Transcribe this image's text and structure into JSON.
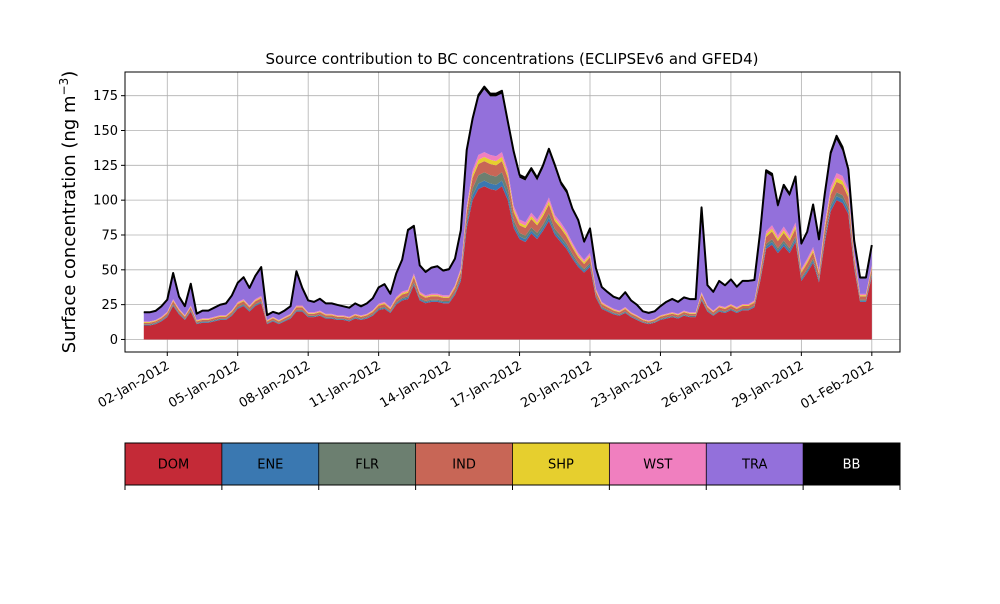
{
  "chart_data": {
    "type": "area",
    "title": "Source contribution to BC concentrations (ECLIPSEv6 and GFED4)",
    "ylabel_text": "Surface concentration (ng m",
    "ylabel_exp": "−3",
    "ylabel_close": ")",
    "xlabel": "",
    "ylim": [
      -9,
      192
    ],
    "yticks": [
      0,
      25,
      50,
      75,
      100,
      125,
      150,
      175
    ],
    "xlim": [
      -0.8,
      32.2
    ],
    "xticks": [
      {
        "day": 1,
        "label": "02-Jan-2012"
      },
      {
        "day": 4,
        "label": "05-Jan-2012"
      },
      {
        "day": 7,
        "label": "08-Jan-2012"
      },
      {
        "day": 10,
        "label": "11-Jan-2012"
      },
      {
        "day": 13,
        "label": "14-Jan-2012"
      },
      {
        "day": 16,
        "label": "17-Jan-2012"
      },
      {
        "day": 19,
        "label": "20-Jan-2012"
      },
      {
        "day": 22,
        "label": "23-Jan-2012"
      },
      {
        "day": 25,
        "label": "26-Jan-2012"
      },
      {
        "day": 28,
        "label": "29-Jan-2012"
      },
      {
        "day": 31,
        "label": "01-Feb-2012"
      }
    ],
    "grid": true,
    "legend_position": "bottom",
    "x_unit": "days since 01-Jan-2012",
    "x": [
      0.0,
      0.25,
      0.5,
      0.75,
      1.0,
      1.25,
      1.5,
      1.75,
      2.0,
      2.25,
      2.5,
      2.75,
      3.0,
      3.25,
      3.5,
      3.75,
      4.0,
      4.25,
      4.5,
      4.75,
      5.0,
      5.25,
      5.5,
      5.75,
      6.0,
      6.25,
      6.5,
      6.75,
      7.0,
      7.25,
      7.5,
      7.75,
      8.0,
      8.25,
      8.5,
      8.75,
      9.0,
      9.25,
      9.5,
      9.75,
      10.0,
      10.25,
      10.5,
      10.75,
      11.0,
      11.25,
      11.5,
      11.75,
      12.0,
      12.25,
      12.5,
      12.75,
      13.0,
      13.25,
      13.5,
      13.75,
      14.0,
      14.25,
      14.5,
      14.75,
      15.0,
      15.25,
      15.5,
      15.75,
      16.0,
      16.25,
      16.5,
      16.75,
      17.0,
      17.25,
      17.5,
      17.75,
      18.0,
      18.25,
      18.5,
      18.75,
      19.0,
      19.25,
      19.5,
      19.75,
      20.0,
      20.25,
      20.5,
      20.75,
      21.0,
      21.25,
      21.5,
      21.75,
      22.0,
      22.25,
      22.5,
      22.75,
      23.0,
      23.25,
      23.5,
      23.75,
      24.0,
      24.25,
      24.5,
      24.75,
      25.0,
      25.25,
      25.5,
      25.75,
      26.0,
      26.25,
      26.5,
      26.75,
      27.0,
      27.25,
      27.5,
      27.75,
      28.0,
      28.25,
      28.5,
      28.75,
      29.0,
      29.25,
      29.5,
      29.75,
      30.0,
      30.25,
      30.5,
      30.75,
      31.0
    ],
    "series": [
      {
        "name": "DOM",
        "color": "#c42a37",
        "values": [
          10,
          10,
          11,
          13,
          16,
          24,
          18,
          14,
          20,
          11,
          12,
          12,
          13,
          14,
          14,
          17,
          22,
          24,
          20,
          24,
          26,
          11,
          13,
          11,
          13,
          15,
          20,
          20,
          16,
          16,
          17,
          15,
          15,
          14,
          14,
          13,
          15,
          14,
          15,
          17,
          21,
          22,
          19,
          25,
          28,
          29,
          39,
          28,
          26,
          27,
          27,
          26,
          26,
          32,
          42,
          80,
          100,
          108,
          110,
          108,
          107,
          110,
          100,
          80,
          72,
          70,
          76,
          72,
          78,
          85,
          75,
          70,
          65,
          58,
          52,
          48,
          52,
          30,
          22,
          20,
          18,
          17,
          19,
          16,
          14,
          12,
          11,
          12,
          14,
          15,
          16,
          15,
          17,
          16,
          16,
          28,
          20,
          17,
          20,
          19,
          21,
          19,
          21,
          21,
          23,
          42,
          65,
          68,
          62,
          67,
          62,
          70,
          42,
          48,
          55,
          41,
          70,
          92,
          100,
          98,
          90,
          51,
          27,
          27,
          45
        ]
      },
      {
        "name": "ENE",
        "color": "#3a78b1",
        "values": [
          0.5,
          0.5,
          0.5,
          0.5,
          0.6,
          0.7,
          0.6,
          0.5,
          0.6,
          0.5,
          0.5,
          0.5,
          0.5,
          0.5,
          0.5,
          0.6,
          0.7,
          0.7,
          0.6,
          0.7,
          0.7,
          0.5,
          0.5,
          0.5,
          0.5,
          0.5,
          0.6,
          0.6,
          0.5,
          0.5,
          0.5,
          0.5,
          0.5,
          0.5,
          0.5,
          0.5,
          0.5,
          0.5,
          0.5,
          0.6,
          0.7,
          0.7,
          0.6,
          0.8,
          0.9,
          1,
          1,
          0.9,
          0.8,
          0.8,
          0.8,
          0.8,
          0.8,
          1,
          1.5,
          2.5,
          3.5,
          4,
          4,
          4,
          4,
          4,
          3.5,
          2.5,
          2,
          2,
          2,
          2,
          2,
          2.5,
          2,
          2,
          2,
          1.5,
          1.5,
          1.2,
          1.5,
          0.9,
          0.7,
          0.6,
          0.6,
          0.5,
          0.6,
          0.5,
          0.5,
          0.4,
          0.4,
          0.4,
          0.5,
          0.5,
          0.5,
          0.5,
          0.5,
          0.5,
          0.5,
          0.8,
          0.6,
          0.5,
          0.6,
          0.6,
          0.6,
          0.6,
          0.6,
          0.6,
          0.7,
          1.2,
          1.8,
          2,
          1.8,
          2,
          1.8,
          2,
          1.2,
          1.4,
          1.6,
          1.2,
          2,
          2.5,
          2.8,
          2.8,
          2.5,
          1.5,
          0.8,
          0.8,
          1.2
        ]
      },
      {
        "name": "FLR",
        "color": "#6c7f70",
        "values": [
          0.5,
          0.5,
          0.5,
          0.5,
          0.6,
          0.7,
          0.6,
          0.5,
          0.6,
          0.5,
          0.5,
          0.5,
          0.5,
          0.5,
          0.5,
          0.6,
          0.7,
          0.7,
          0.6,
          0.7,
          0.7,
          0.5,
          0.5,
          0.5,
          0.5,
          0.5,
          0.6,
          0.6,
          0.5,
          0.5,
          0.5,
          0.5,
          0.5,
          0.5,
          0.5,
          0.5,
          0.5,
          0.5,
          0.5,
          0.6,
          0.7,
          0.7,
          0.6,
          0.8,
          0.9,
          1,
          1.2,
          0.9,
          0.8,
          0.8,
          0.8,
          0.8,
          0.8,
          1,
          1.5,
          3,
          5,
          6,
          6,
          6,
          6,
          6,
          5,
          3,
          2.5,
          2.5,
          2.5,
          2.5,
          2.5,
          3,
          2.5,
          2.5,
          2,
          2,
          1.5,
          1.5,
          1.5,
          1,
          0.7,
          0.6,
          0.6,
          0.5,
          0.6,
          0.5,
          0.5,
          0.4,
          0.4,
          0.4,
          0.5,
          0.5,
          0.5,
          0.5,
          0.5,
          0.5,
          0.5,
          0.8,
          0.6,
          0.5,
          0.6,
          0.6,
          0.6,
          0.6,
          0.6,
          0.6,
          0.7,
          1.2,
          1.8,
          2,
          1.8,
          2,
          1.8,
          2,
          1.2,
          1.4,
          1.6,
          1.2,
          2,
          2.5,
          2.8,
          2.8,
          2.5,
          1.5,
          0.8,
          0.8,
          1.2
        ]
      },
      {
        "name": "IND",
        "color": "#c86656",
        "values": [
          1,
          1,
          1,
          1.2,
          1.5,
          2,
          1.6,
          1.3,
          1.8,
          1,
          1.1,
          1.1,
          1.2,
          1.3,
          1.3,
          1.5,
          2,
          2,
          1.8,
          2,
          2.2,
          1,
          1.2,
          1,
          1.2,
          1.3,
          1.8,
          1.8,
          1.4,
          1.4,
          1.5,
          1.3,
          1.3,
          1.2,
          1.2,
          1.2,
          1.3,
          1.2,
          1.3,
          1.5,
          1.8,
          2,
          1.6,
          2.2,
          2.5,
          2.5,
          3.5,
          2.5,
          2.3,
          2.4,
          2.4,
          2.3,
          2.3,
          2.8,
          3.5,
          6,
          7.5,
          8,
          8,
          8,
          8,
          8,
          7.5,
          6,
          5.5,
          5.5,
          6,
          5.5,
          6,
          6.5,
          5.5,
          5.5,
          5,
          4.5,
          4,
          3.5,
          4,
          2.5,
          2,
          1.8,
          1.6,
          1.5,
          1.7,
          1.4,
          1.3,
          1.1,
          1,
          1.1,
          1.3,
          1.4,
          1.5,
          1.4,
          1.5,
          1.4,
          1.4,
          2.5,
          1.8,
          1.5,
          1.8,
          1.7,
          1.9,
          1.7,
          1.9,
          1.9,
          2,
          3.5,
          5,
          5.5,
          5,
          5.5,
          5,
          5.5,
          3.5,
          4,
          4.5,
          3.5,
          5.5,
          7,
          7.5,
          7.5,
          7,
          4,
          2.3,
          2.3,
          3.5
        ]
      },
      {
        "name": "SHP",
        "color": "#e6cf2e",
        "values": [
          0.5,
          0.5,
          0.5,
          0.5,
          0.6,
          0.7,
          0.6,
          0.5,
          0.6,
          0.5,
          0.5,
          0.5,
          0.5,
          0.5,
          0.5,
          0.6,
          0.7,
          0.7,
          0.6,
          0.7,
          0.7,
          0.5,
          0.5,
          0.5,
          0.5,
          0.5,
          0.6,
          0.6,
          0.5,
          0.5,
          0.5,
          0.5,
          0.5,
          0.5,
          0.5,
          0.5,
          0.5,
          0.5,
          0.5,
          0.6,
          0.7,
          0.7,
          0.6,
          0.8,
          0.9,
          1,
          1.2,
          0.9,
          0.8,
          0.8,
          0.8,
          0.8,
          0.8,
          1,
          1.2,
          2,
          2.5,
          3,
          3,
          3,
          3,
          3,
          2.5,
          2,
          1.8,
          1.8,
          2,
          1.8,
          2,
          2.2,
          2,
          1.8,
          1.7,
          1.5,
          1.4,
          1.3,
          1.4,
          0.9,
          0.7,
          0.6,
          0.6,
          0.5,
          0.6,
          0.5,
          0.5,
          0.4,
          0.4,
          0.4,
          0.5,
          0.5,
          0.5,
          0.5,
          0.5,
          0.5,
          0.5,
          0.8,
          0.6,
          0.5,
          0.6,
          0.6,
          0.6,
          0.6,
          0.6,
          0.6,
          0.7,
          1.2,
          1.8,
          2,
          1.8,
          2,
          1.8,
          2,
          1.2,
          1.4,
          1.6,
          1.2,
          2,
          2.5,
          2.8,
          2.8,
          2.5,
          1.5,
          0.8,
          0.8,
          1.2
        ]
      },
      {
        "name": "WST",
        "color": "#f07fbf",
        "values": [
          0.5,
          0.5,
          0.5,
          0.6,
          0.7,
          0.9,
          0.8,
          0.6,
          0.8,
          0.5,
          0.6,
          0.6,
          0.6,
          0.6,
          0.6,
          0.7,
          0.9,
          0.9,
          0.8,
          0.9,
          1,
          0.5,
          0.6,
          0.5,
          0.6,
          0.6,
          0.8,
          0.8,
          0.6,
          0.6,
          0.7,
          0.6,
          0.6,
          0.6,
          0.6,
          0.6,
          0.6,
          0.6,
          0.6,
          0.7,
          0.8,
          0.9,
          0.8,
          1,
          1.1,
          1.2,
          1.5,
          1.1,
          1,
          1,
          1,
          1,
          1,
          1.2,
          1.6,
          2.5,
          3,
          3.5,
          3.5,
          3.5,
          3.5,
          3.5,
          3,
          2.5,
          2.3,
          2.3,
          2.5,
          2.3,
          2.5,
          2.7,
          2.4,
          2.3,
          2.2,
          2,
          1.8,
          1.6,
          1.8,
          1.1,
          0.9,
          0.8,
          0.7,
          0.7,
          0.8,
          0.6,
          0.6,
          0.5,
          0.5,
          0.5,
          0.6,
          0.6,
          0.6,
          0.6,
          0.7,
          0.6,
          0.6,
          1.1,
          0.8,
          0.7,
          0.8,
          0.8,
          0.8,
          0.8,
          0.8,
          0.8,
          0.9,
          1.6,
          2.3,
          2.5,
          2.3,
          2.5,
          2.3,
          2.5,
          1.6,
          1.8,
          2,
          1.6,
          2.5,
          3.2,
          3.5,
          3.5,
          3.2,
          1.9,
          1,
          1,
          1.5
        ]
      },
      {
        "name": "TRA",
        "color": "#9370db",
        "values": [
          6,
          6,
          6,
          7,
          8,
          18,
          8,
          6,
          15,
          4,
          5,
          5,
          6,
          7,
          8,
          10,
          13,
          15,
          12,
          16,
          20,
          3,
          3,
          4,
          4,
          5,
          24,
          12,
          8,
          7,
          8,
          7,
          7,
          7,
          6,
          6,
          7,
          6,
          7,
          8,
          11,
          12,
          9,
          16,
          22,
          42,
          33,
          18,
          16,
          18,
          19,
          17,
          18,
          18,
          26,
          38,
          35,
          41,
          45,
          42,
          43,
          42,
          33,
          37,
          30,
          30,
          30,
          28,
          30,
          33,
          34,
          27,
          27,
          23,
          22,
          12,
          16,
          14,
          10,
          9,
          8,
          8,
          10,
          8,
          7,
          5,
          5,
          5,
          6,
          8,
          9,
          8,
          9,
          9,
          9,
          60,
          14,
          13,
          17,
          15,
          17,
          14,
          16,
          16,
          14,
          26,
          42,
          35,
          20,
          28,
          28,
          31,
          17,
          18,
          29,
          21,
          19,
          22,
          24,
          18,
          12,
          8,
          11,
          11,
          13
        ]
      },
      {
        "name": "BB",
        "color": "#000000",
        "values": [
          0.5,
          0.5,
          0.5,
          0.5,
          0.6,
          0.7,
          0.6,
          0.5,
          0.6,
          0.5,
          0.5,
          0.5,
          0.5,
          0.5,
          0.5,
          0.6,
          0.7,
          0.7,
          0.6,
          0.7,
          0.7,
          0.5,
          0.5,
          0.5,
          0.5,
          0.5,
          0.6,
          0.6,
          0.5,
          0.5,
          0.5,
          0.5,
          0.5,
          0.5,
          0.5,
          0.5,
          0.5,
          0.5,
          0.5,
          0.6,
          0.7,
          0.7,
          0.6,
          0.8,
          0.9,
          1,
          1.2,
          0.9,
          0.8,
          0.8,
          0.8,
          0.8,
          0.8,
          1,
          1.2,
          2,
          2,
          2,
          2,
          2,
          2,
          2,
          2,
          2,
          2,
          2,
          2,
          2,
          2,
          2,
          2,
          2,
          2,
          1.5,
          1.5,
          1.2,
          1.5,
          0.9,
          0.7,
          0.6,
          0.6,
          0.5,
          0.6,
          0.5,
          0.5,
          0.4,
          0.4,
          0.4,
          0.5,
          0.5,
          0.5,
          0.5,
          0.5,
          0.5,
          0.5,
          0.8,
          0.6,
          0.5,
          0.6,
          0.6,
          0.6,
          0.6,
          0.6,
          0.6,
          0.7,
          1.2,
          1.8,
          2,
          1.8,
          2,
          1.8,
          2,
          1.2,
          1.4,
          1.6,
          1.2,
          2,
          2.5,
          2.8,
          2.8,
          2.5,
          1.5,
          0.8,
          0.8,
          1.2
        ]
      }
    ]
  }
}
